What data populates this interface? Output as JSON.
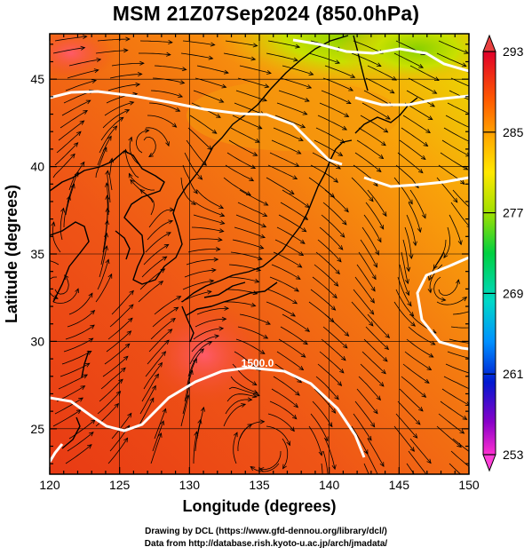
{
  "title": "MSM 21Z07Sep2024 (850.0hPa)",
  "map": {
    "x_axis_label": "Longitude (degrees)",
    "y_axis_label": "Latitude  (degrees)",
    "x_ticks": [
      "120",
      "125",
      "130",
      "135",
      "140",
      "145",
      "150"
    ],
    "y_ticks": [
      "25",
      "30",
      "35",
      "40",
      "45"
    ],
    "x_range": [
      120,
      150
    ],
    "y_range": [
      22.4,
      47.6
    ],
    "contour_label": "1500.0",
    "contour_color": "#ffffff",
    "coastline_color": "#000000",
    "streamline_color": "#000000"
  },
  "colorbar": {
    "labels": [
      "293",
      "285",
      "277",
      "269",
      "261",
      "253"
    ],
    "colors": [
      "#e0002a",
      "#ff6a00",
      "#ffd000",
      "#9ade00",
      "#00d040",
      "#00d8c0",
      "#0078ff",
      "#0010c8",
      "#9a00c8",
      "#ff30d0"
    ]
  },
  "credits": {
    "line1": "Drawing by DCL (https://www.gfd-dennou.org/library/dcl/)",
    "line2": "Data from http://database.rish.kyoto-u.ac.jp/arch/jmadata/"
  }
}
